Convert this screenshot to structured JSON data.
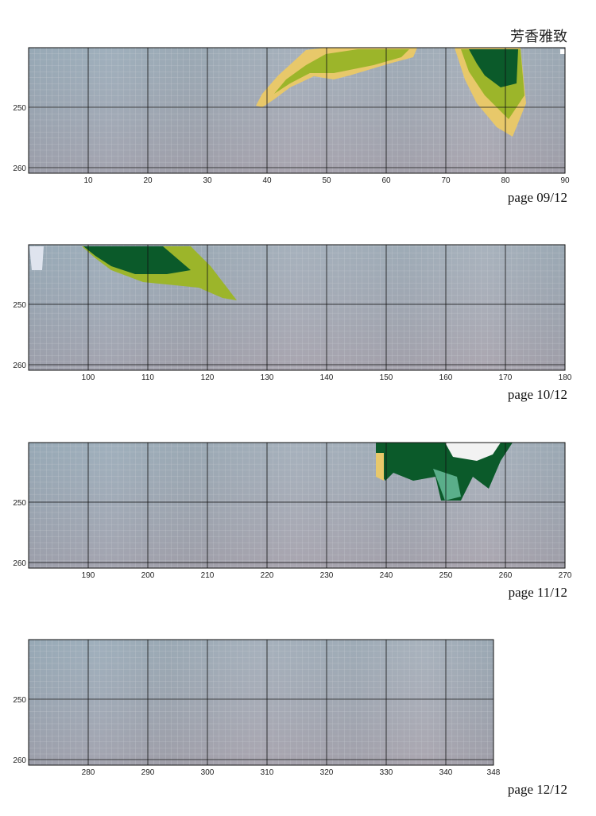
{
  "title": "芳香雅致",
  "panels": [
    {
      "xticks": [
        10,
        20,
        30,
        40,
        50,
        60,
        70,
        80,
        90
      ],
      "yticks": [
        250,
        260
      ],
      "page": "page 09/12"
    },
    {
      "xticks": [
        100,
        110,
        120,
        130,
        140,
        150,
        160,
        170,
        180
      ],
      "yticks": [
        250,
        260
      ],
      "page": "page 10/12"
    },
    {
      "xticks": [
        190,
        200,
        210,
        220,
        230,
        240,
        250,
        260,
        270
      ],
      "yticks": [
        250,
        260
      ],
      "page": "page 11/12"
    },
    {
      "xticks": [
        280,
        290,
        300,
        310,
        320,
        330,
        340,
        348
      ],
      "yticks": [
        250,
        260
      ],
      "page": "page 12/12"
    }
  ]
}
